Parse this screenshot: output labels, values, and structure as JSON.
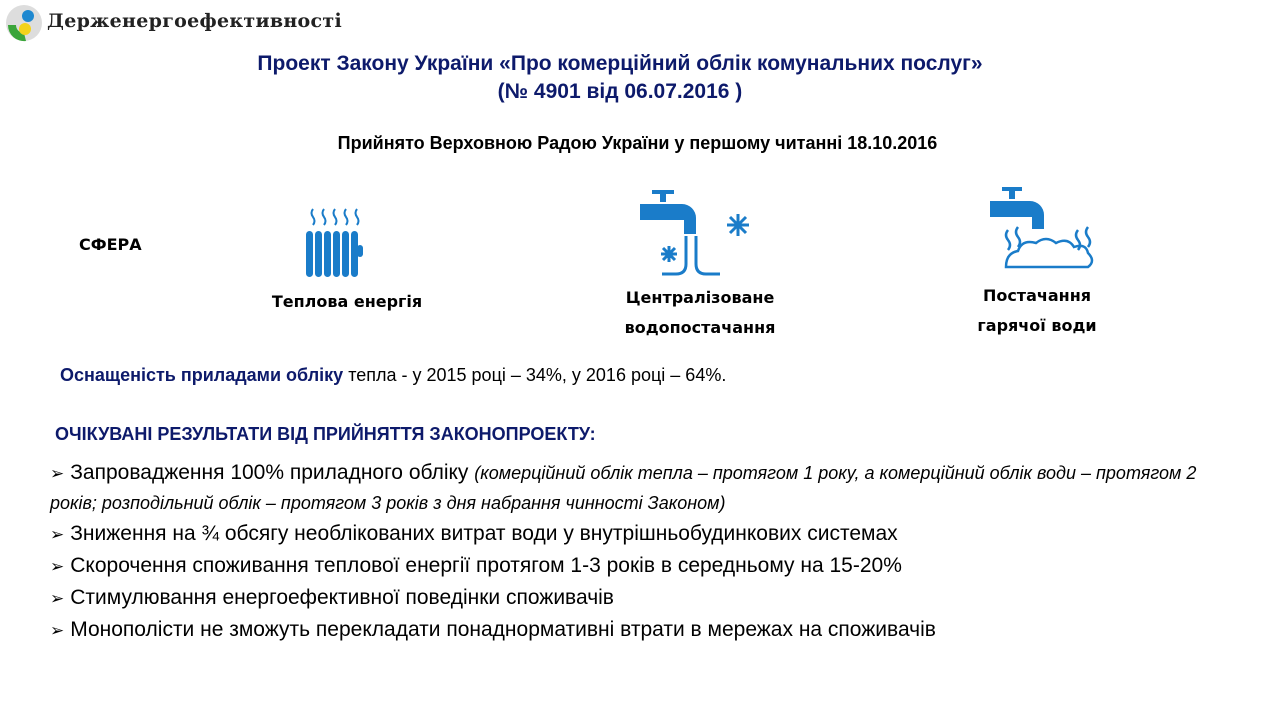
{
  "header": {
    "org_name": "Держенергоефективності"
  },
  "title": {
    "line1": "Проект Закону України «Про комерційний облік комунальних послуг»",
    "line2": "(№ 4901 від 06.07.2016 )"
  },
  "subtitle": "Прийнято Верховною Радою України у першому читанні 18.10.2016",
  "sphere": {
    "label": "СФЕРА",
    "items": [
      {
        "icon": "radiator-icon",
        "label": "Теплова енергія"
      },
      {
        "icon": "cold-water-tap-icon",
        "label_line1": "Централізоване",
        "label_line2": "водопостачання"
      },
      {
        "icon": "hot-water-tap-icon",
        "label_line1": "Постачання",
        "label_line2": "гарячої води"
      }
    ]
  },
  "equipment": {
    "bold": "Оснащеність приладами обліку",
    "text": " тепла - у 2015 році – 34%, у 2016 році – 64%."
  },
  "results": {
    "title": "ОЧІКУВАНІ РЕЗУЛЬТАТИ ВІД ПРИЙНЯТТЯ ЗАКОНОПРОЕКТУ:",
    "items": [
      {
        "text": "Запровадження 100% приладного обліку ",
        "note": "(комерційний облік тепла  – протягом 1 року, а комерційний облік води – протягом 2 років; розподільний облік – протягом 3 років з дня набрання чинності Законом)"
      },
      {
        "text": "Зниження на ¾ обсягу необлікованих витрат води у внутрішньобудинкових системах"
      },
      {
        "text": "Скорочення споживання теплової енергії протягом 1-3 років в середньому на 15-20%"
      },
      {
        "text": "Стимулювання енергоефективної поведінки споживачів"
      },
      {
        "text": "Монополісти не зможуть перекладати понаднормативні втрати в мережах на споживачів"
      }
    ]
  },
  "colors": {
    "title": "#0d1a6b",
    "icon": "#1a7cc9"
  }
}
